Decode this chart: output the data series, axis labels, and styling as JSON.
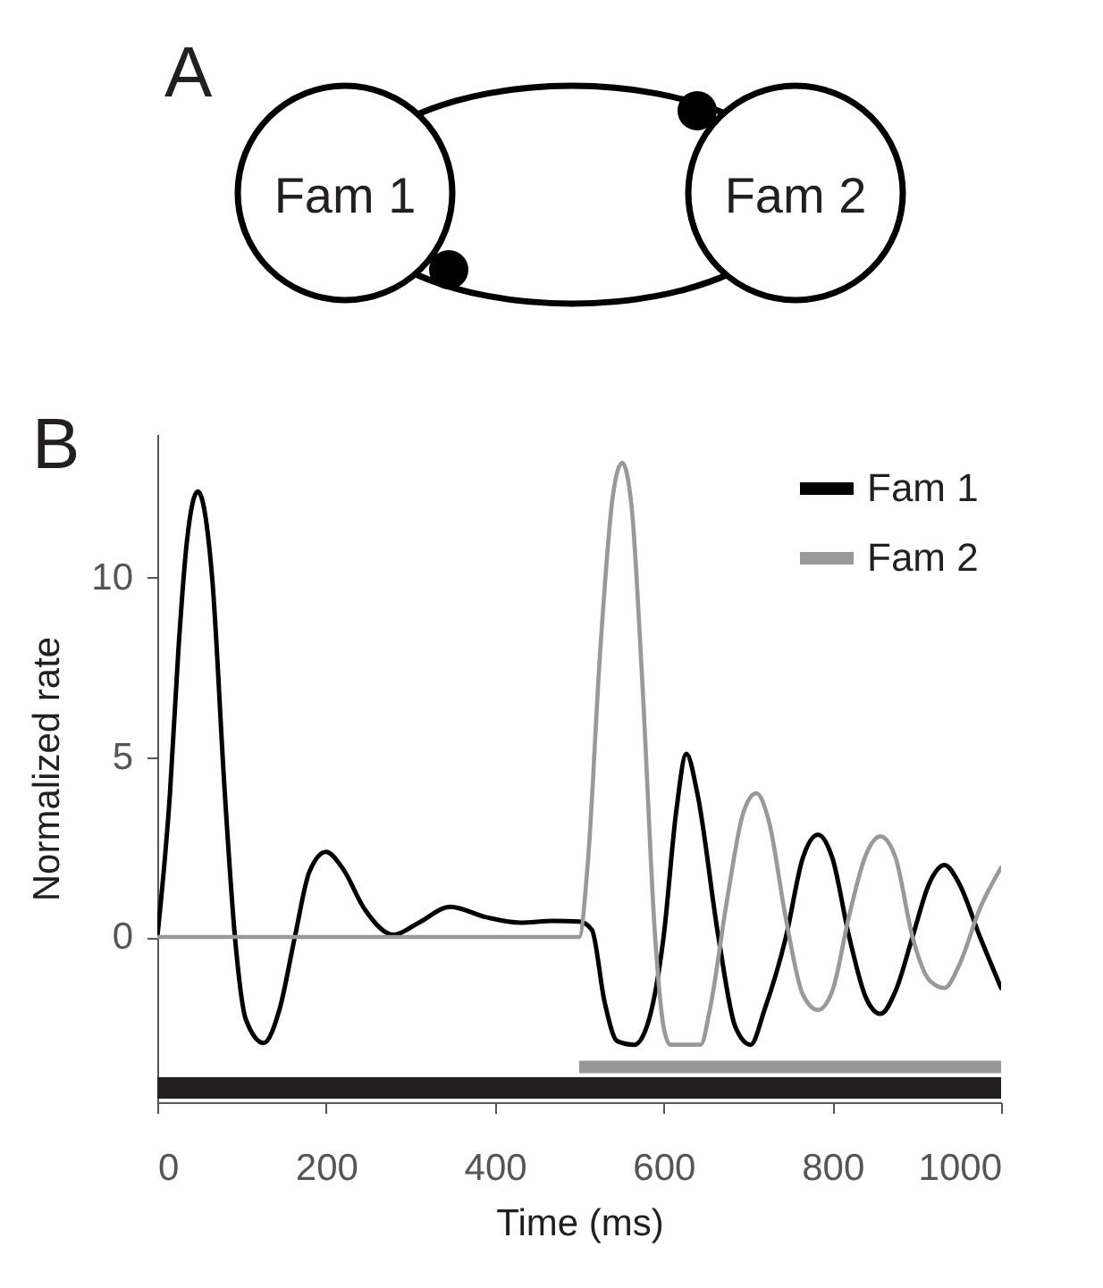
{
  "chart_data": {
    "type": "line",
    "xlabel": "Time (ms)",
    "ylabel": "Normalized rate",
    "annotations": [
      "A",
      "Fam 1",
      "Fam 2",
      "B"
    ],
    "series": [
      {
        "name": "Fam 1",
        "color": "#000000",
        "x": [
          0,
          15,
          25,
          35,
          48,
          65,
          80,
          92,
          105,
          126,
          145,
          163,
          180,
          200,
          220,
          245,
          280,
          310,
          347,
          390,
          430,
          470,
          500,
          515,
          530,
          545,
          565,
          580,
          600,
          615,
          627,
          640,
          665,
          685,
          703,
          720,
          745,
          765,
          783,
          800,
          820,
          840,
          857,
          875,
          895,
          915,
          933,
          950,
          975,
          1000
        ],
        "values": [
          0,
          4,
          8,
          11,
          12.4,
          10,
          4,
          0,
          -2.3,
          -2.95,
          -2,
          0,
          1.8,
          2.37,
          1.9,
          0.8,
          0.06,
          0.4,
          0.84,
          0.55,
          0.4,
          0.45,
          0.43,
          0.2,
          -1.8,
          -2.9,
          -3,
          -2.5,
          0,
          3.5,
          5.1,
          4,
          0,
          -2.5,
          -3,
          -2,
          0,
          2.2,
          2.85,
          2.2,
          0,
          -1.7,
          -2.14,
          -1.5,
          0,
          1.5,
          2,
          1.5,
          0,
          -1.42
        ]
      },
      {
        "name": "Fam 2",
        "color": "#999999",
        "x": [
          0,
          500,
          510,
          525,
          540,
          551,
          562,
          575,
          590,
          600,
          608,
          644,
          655,
          675,
          695,
          710,
          725,
          745,
          765,
          783,
          800,
          820,
          840,
          857,
          875,
          895,
          915,
          933,
          950,
          975,
          1000
        ],
        "values": [
          0,
          0,
          2,
          8,
          12.3,
          13.2,
          12,
          7,
          0,
          -2.5,
          -3,
          -3,
          -2,
          1,
          3.5,
          4,
          3.2,
          0.5,
          -1.6,
          -2.03,
          -1.5,
          0.6,
          2.3,
          2.8,
          2.2,
          0,
          -1.2,
          -1.42,
          -0.8,
          0.8,
          1.93
        ]
      },
      {
        "type": "line",
        "color": "#231f20",
        "x": [
          0,
          1000
        ],
        "values": [
          -4.2,
          -4.2
        ]
      },
      {
        "type": "line",
        "color": "#999999",
        "x": [
          500,
          1000
        ],
        "values": [
          -3.62,
          -3.62
        ]
      }
    ],
    "xlim": [
      0,
      1000
    ],
    "xticks": [
      0,
      200,
      400,
      600,
      800,
      1000
    ],
    "ylim": [
      -4.6,
      14
    ],
    "yticks": [
      0,
      5,
      10
    ],
    "grid": false,
    "legend": "top right",
    "marker": "none",
    "line_style": "solid"
  }
}
